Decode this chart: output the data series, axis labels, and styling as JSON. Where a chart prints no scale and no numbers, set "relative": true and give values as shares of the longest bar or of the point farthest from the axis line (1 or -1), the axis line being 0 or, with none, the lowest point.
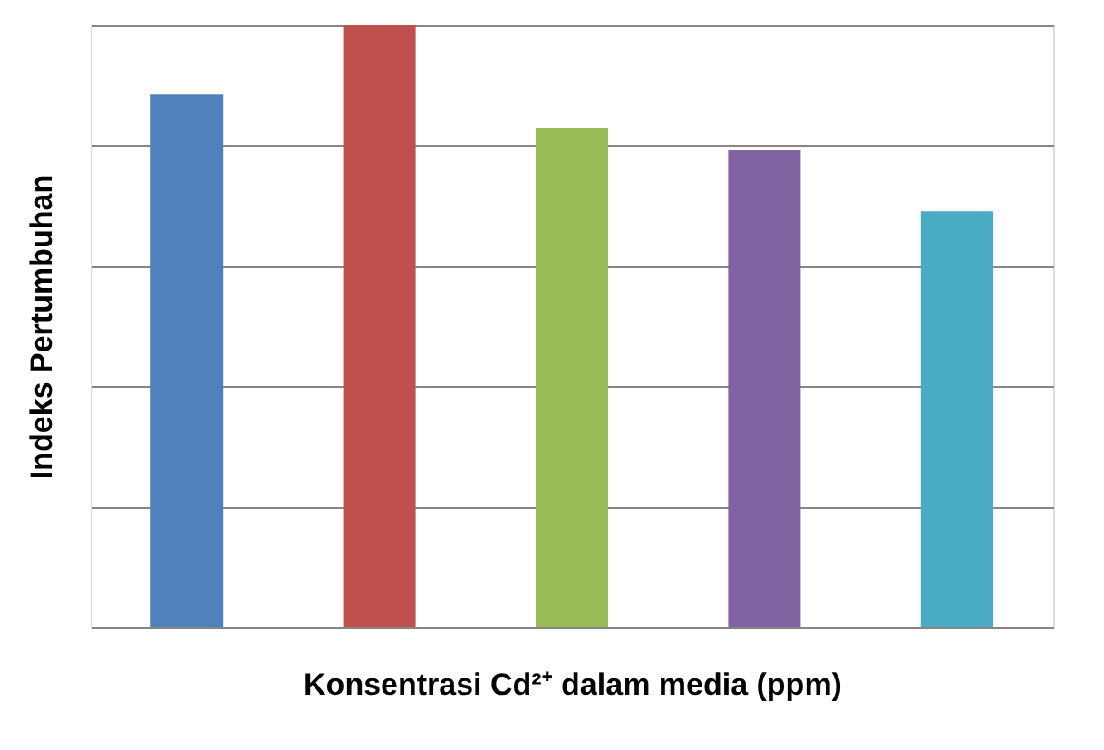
{
  "chart_data": {
    "type": "bar",
    "relative": true,
    "xlabel": "Konsentrasi Cd²⁺ dalam media (ppm)",
    "ylabel": "Indeks Pertumbuhan",
    "categories": [
      null,
      null,
      null,
      null,
      null
    ],
    "values": [
      0.885,
      1,
      0.83,
      0.792,
      0.691
    ],
    "colors": [
      "#4f81bd",
      "#c0504d",
      "#9bbb59",
      "#8064a2",
      "#4bacc6"
    ],
    "grid": "y"
  }
}
